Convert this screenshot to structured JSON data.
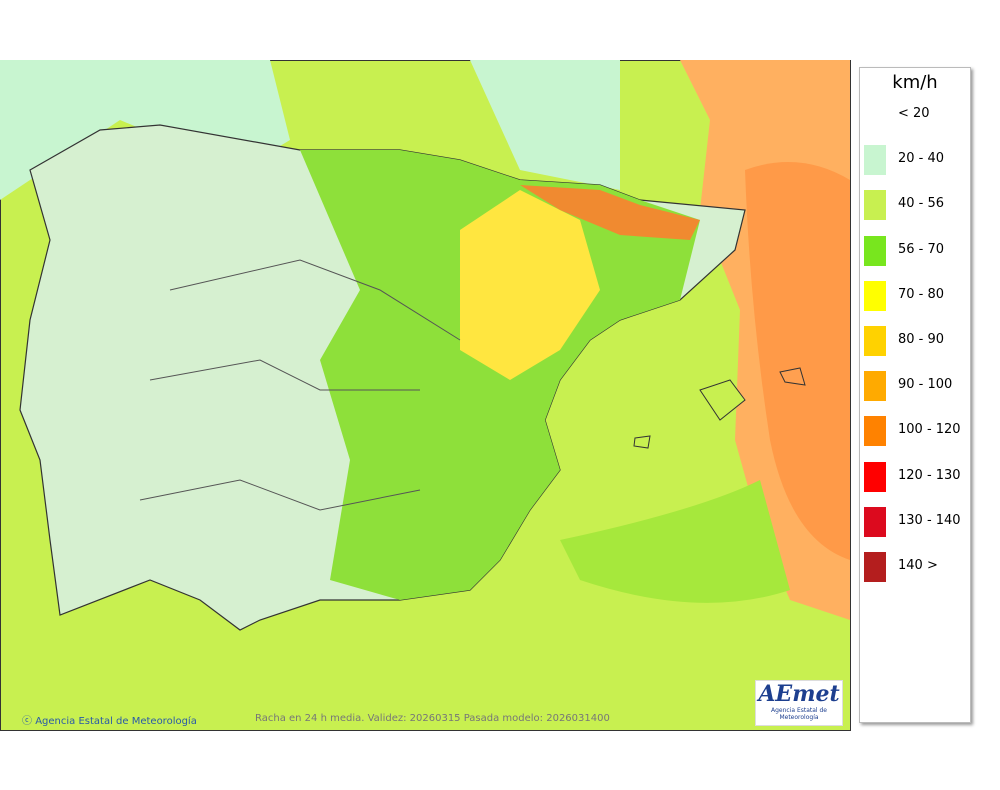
{
  "legend": {
    "title": "km/h",
    "entries": [
      {
        "label": "< 20",
        "color": null
      },
      {
        "label": "20 - 40",
        "color": "#c8f5d0"
      },
      {
        "label": "40 - 56",
        "color": "#c8f050"
      },
      {
        "label": "56 - 70",
        "color": "#78e61e"
      },
      {
        "label": "70 - 80",
        "color": "#ffff00"
      },
      {
        "label": "80 - 90",
        "color": "#ffd200"
      },
      {
        "label": "90 - 100",
        "color": "#ffaa00"
      },
      {
        "label": "100 - 120",
        "color": "#ff8200"
      },
      {
        "label": "120 - 130",
        "color": "#ff0000"
      },
      {
        "label": "130 - 140",
        "color": "#dc0a1e"
      },
      {
        "label": "140 >",
        "color": "#b41e1e"
      }
    ]
  },
  "footer": {
    "credit": "Agencia Estatal de Meteorología",
    "validity": "Racha en 24 h media. Validez: 20260315 Pasada modelo: 2026031400"
  },
  "logo": {
    "name": "AEmet",
    "subtitle": "Agencia Estatal de Meteorología"
  }
}
